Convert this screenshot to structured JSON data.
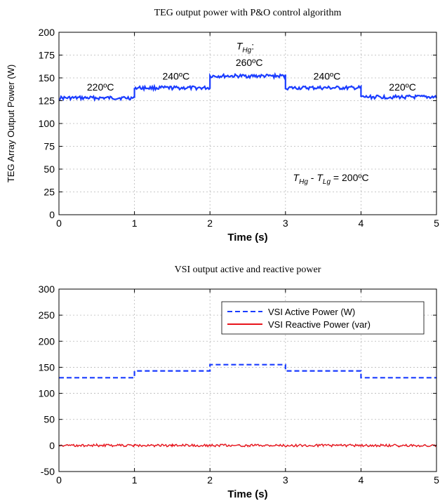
{
  "chart_data": [
    {
      "type": "line",
      "title": "TEG output power with P&O control algorithm",
      "xlabel": "Time (s)",
      "ylabel": "TEG Array Output Power (W)",
      "xlim": [
        0,
        5
      ],
      "ylim": [
        0,
        200
      ],
      "x_ticks": [
        "0",
        "1",
        "2",
        "3",
        "4",
        "5"
      ],
      "y_ticks": [
        "0",
        "25",
        "50",
        "75",
        "100",
        "125",
        "150",
        "175",
        "200"
      ],
      "grid": true,
      "series": [
        {
          "color": "#1a3cff",
          "style": "solid",
          "x": [
            0,
            1,
            1,
            2,
            2,
            3,
            3,
            4,
            4,
            5
          ],
          "y": [
            128,
            128,
            139,
            139,
            152,
            152,
            139,
            139,
            129,
            129
          ]
        }
      ],
      "annotations": [
        {
          "text": "220ºC",
          "x": 0.55,
          "y": 136
        },
        {
          "text": "240ºC",
          "x": 1.55,
          "y": 148
        },
        {
          "text_main": "T",
          "text_sub": "Hg",
          "text_tail": ":",
          "x": 2.35,
          "y": 181
        },
        {
          "text": "260ºC",
          "x": 2.52,
          "y": 163
        },
        {
          "text": "240ºC",
          "x": 3.55,
          "y": 148
        },
        {
          "text": "220ºC",
          "x": 4.55,
          "y": 136
        },
        {
          "formula": [
            "T",
            "Hg",
            " - ",
            "T",
            "Lg",
            " = 200ºC"
          ],
          "x": 3.1,
          "y": 37
        }
      ]
    },
    {
      "type": "line",
      "title": "VSI output active and reactive power",
      "xlabel": "Time (s)",
      "ylabel": "",
      "xlim": [
        0,
        5
      ],
      "ylim": [
        -50,
        300
      ],
      "x_ticks": [
        "0",
        "1",
        "2",
        "3",
        "4",
        "5"
      ],
      "y_ticks": [
        "-50",
        "0",
        "50",
        "100",
        "150",
        "200",
        "250",
        "300"
      ],
      "grid": true,
      "legend_position": "top-right",
      "series": [
        {
          "name": "VSI Active Power (W)",
          "color": "#1a3cff",
          "style": "dashed",
          "x": [
            0,
            1,
            1,
            2,
            2,
            3,
            3,
            4,
            4,
            5
          ],
          "y": [
            130,
            130,
            143,
            143,
            155,
            155,
            143,
            143,
            130,
            130
          ]
        },
        {
          "name": "VSI Reactive Power (var)",
          "color": "#e8141c",
          "style": "solid",
          "x": [
            0,
            0.5,
            1,
            1.5,
            2,
            2.5,
            3,
            3.5,
            4,
            4.5,
            5
          ],
          "y": [
            0,
            0,
            0,
            0,
            0,
            0,
            0,
            0,
            0,
            0,
            0
          ]
        }
      ]
    }
  ]
}
